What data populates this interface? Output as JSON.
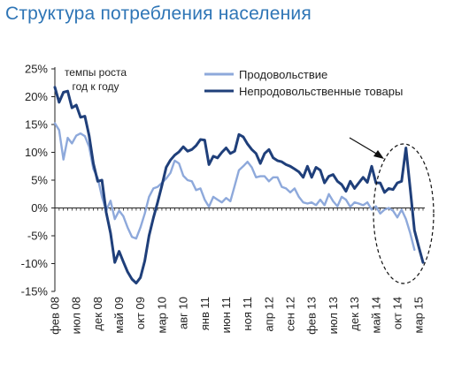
{
  "title": "Структура потребления населения",
  "colors": {
    "food": "#8EA9DB",
    "nonfood": "#1F3F7A",
    "title": "#2E75B6",
    "axis": "#222222",
    "annotation": "#111111"
  },
  "chart_data": {
    "type": "line",
    "title": "Структура потребления населения",
    "note": "темпы роста год к году",
    "ylim": [
      -15,
      25
    ],
    "yticks": [
      "25%",
      "20%",
      "15%",
      "10%",
      "5%",
      "0%",
      "-5%",
      "-10%",
      "-15%"
    ],
    "ytick_values": [
      25,
      20,
      15,
      10,
      5,
      0,
      -5,
      -10,
      -15
    ],
    "xlabels": [
      "фев 08",
      "июл 08",
      "дек 08",
      "май 09",
      "окт 09",
      "мар 10",
      "авг 10",
      "янв 11",
      "июн 11",
      "ноя 11",
      "апр 12",
      "сен 12",
      "фев 13",
      "июл 13",
      "дек 13",
      "май 14",
      "окт 14",
      "мар 15"
    ],
    "legend_position": "top-right",
    "annotations": [
      "arrow pointing to the spike in the non-food series (late 2014)",
      "dashed ellipse around the late-2014 / early-2015 period"
    ],
    "x_start": "2008-02",
    "x_step": "month",
    "series": [
      {
        "name": "Продовольствие",
        "values": [
          15.2,
          14,
          8.7,
          12.6,
          11.6,
          13,
          13.4,
          12.9,
          11,
          7,
          5.4,
          2,
          -0.5,
          1.3,
          -2,
          -0.5,
          -1.5,
          -3.5,
          -5.2,
          -5.5,
          -3.5,
          -1,
          2,
          3.5,
          3.8,
          4.5,
          5.3,
          6.3,
          8.5,
          8,
          5.8,
          5,
          4.8,
          3.2,
          3.5,
          1.5,
          0.2,
          2,
          1.5,
          1,
          1.8,
          1.2,
          4,
          6.8,
          7.5,
          8.3,
          7.3,
          5.5,
          5.7,
          5.7,
          4.8,
          5.5,
          5.5,
          3.8,
          3.5,
          2.8,
          3.5,
          2,
          1,
          0.8,
          1,
          0.5,
          1.5,
          0.5,
          2.5,
          1.2,
          0.3,
          2,
          1.5,
          0.2,
          1,
          0.8,
          0.5,
          1,
          -0.3,
          0.3,
          -1,
          -0.3,
          0,
          -0.5,
          -1.7,
          -0.3,
          -2,
          -4.5,
          -7.5
        ]
      },
      {
        "name": "Непродовольственные товары",
        "values": [
          21.7,
          19,
          20.8,
          21,
          18,
          18.5,
          16.3,
          16.5,
          13,
          8,
          4.8,
          5,
          -0.8,
          -4.5,
          -9.8,
          -7.8,
          -9.7,
          -11.5,
          -12.8,
          -13.5,
          -12.5,
          -9.5,
          -5,
          -1.8,
          1,
          4,
          7.3,
          8.6,
          9.5,
          10.1,
          11,
          10.2,
          10.5,
          11.2,
          12.3,
          12.2,
          7.8,
          9.3,
          9,
          10,
          10.8,
          9.8,
          10.2,
          13.2,
          12.8,
          11.5,
          10.5,
          9.8,
          8,
          9.8,
          10.5,
          9,
          8.5,
          8.3,
          7.8,
          7.5,
          7,
          6.5,
          5.5,
          7.5,
          5.5,
          7.3,
          6.8,
          4.5,
          5.7,
          6,
          4.8,
          4.2,
          3,
          4.8,
          3.5,
          4.5,
          5.5,
          4.6,
          7.5,
          4.5,
          4.5,
          2.8,
          3.5,
          3.3,
          4.5,
          4.8,
          10.8,
          3.5,
          -4,
          -7,
          -9.8
        ]
      }
    ]
  }
}
